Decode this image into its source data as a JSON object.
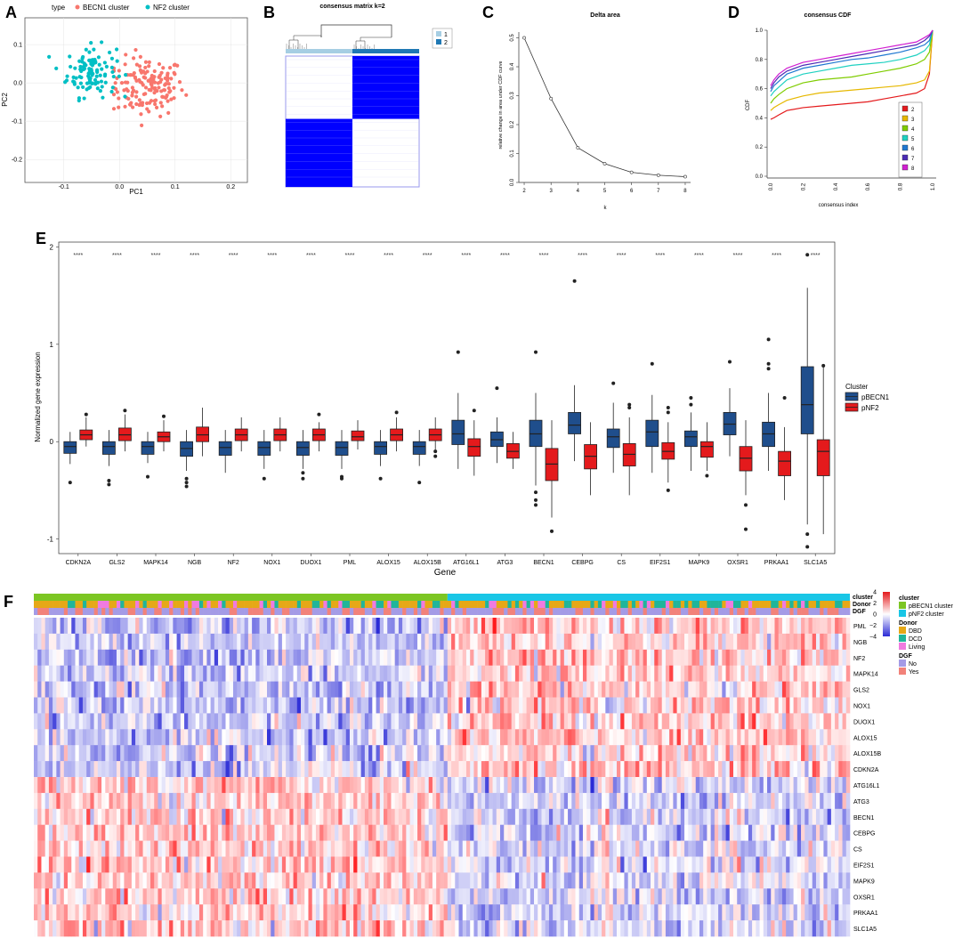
{
  "panels": {
    "A": {
      "letter": "A",
      "legend_title": "type",
      "legend": [
        {
          "label": "BECN1 cluster",
          "color": "#F8766D"
        },
        {
          "label": "NF2 cluster",
          "color": "#00BFC4"
        }
      ],
      "xlabel": "PC1",
      "ylabel": "PC2",
      "xticks": [
        "-0.1",
        "0.0",
        "0.1",
        "0.2"
      ],
      "yticks": [
        "0.1",
        "0.0",
        "-0.1",
        "-0.2"
      ]
    },
    "B": {
      "letter": "B",
      "title": "consensus matrix k=2",
      "legend": [
        {
          "label": "1",
          "color": "#A6CEE3"
        },
        {
          "label": "2",
          "color": "#1F78B4"
        }
      ],
      "block_color": "#0000FF"
    },
    "C": {
      "letter": "C",
      "title": "Delta area",
      "xlabel": "k",
      "ylabel": "relative change in area under CDF curve",
      "yticks": [
        "0.0",
        "0.1",
        "0.2",
        "0.3",
        "0.4",
        "0.5"
      ]
    },
    "D": {
      "letter": "D",
      "title": "consensus CDF",
      "xlabel": "consensus index",
      "ylabel": "CDF",
      "ticks": [
        "0.0",
        "0.2",
        "0.4",
        "0.6",
        "0.8",
        "1.0"
      ]
    },
    "E": {
      "letter": "E",
      "xlabel": "Gene",
      "ylabel": "Normalized gene expression",
      "legend_title": "Cluster",
      "groups": [
        {
          "label": "pBECN1",
          "color": "#1F4E8C"
        },
        {
          "label": "pNF2",
          "color": "#E41A1C"
        }
      ],
      "yticks": [
        "2",
        "1",
        "0",
        "-1"
      ]
    },
    "F": {
      "letter": "F",
      "annotation_labels": [
        "cluster",
        "Donor",
        "DGF"
      ],
      "color_scale": {
        "ticks": [
          "4",
          "2",
          "0",
          "−2",
          "−4"
        ],
        "high": "#E41A1C",
        "mid": "#FFFFFF",
        "low": "#2B2BD6"
      },
      "legend_groups": [
        {
          "title": "cluster",
          "items": [
            {
              "label": "pBECN1 cluster",
              "color": "#7CC623"
            },
            {
              "label": "pNF2 cluster",
              "color": "#19C6E6"
            }
          ]
        },
        {
          "title": "Donor",
          "items": [
            {
              "label": "DBD",
              "color": "#E6A817"
            },
            {
              "label": "DCD",
              "color": "#20B59A"
            },
            {
              "label": "Living",
              "color": "#F07BE0"
            }
          ]
        },
        {
          "title": "DGF",
          "items": [
            {
              "label": "No",
              "color": "#A49BE6"
            },
            {
              "label": "Yes",
              "color": "#F2827A"
            }
          ]
        }
      ],
      "rows": [
        "PML",
        "NGB",
        "NF2",
        "MAPK14",
        "GLS2",
        "NOX1",
        "DUOX1",
        "ALOX15",
        "ALOX15B",
        "CDKN2A",
        "ATG16L1",
        "ATG3",
        "BECN1",
        "CEBPG",
        "CS",
        "EIF2S1",
        "MAPK9",
        "OXSR1",
        "PRKAA1",
        "SLC1A5"
      ]
    }
  },
  "chart_data": [
    {
      "type": "scatter",
      "panel": "A",
      "xlabel": "PC1",
      "ylabel": "PC2",
      "xlim": [
        -0.17,
        0.23
      ],
      "ylim": [
        -0.26,
        0.17
      ],
      "series": [
        {
          "name": "BECN1 cluster",
          "centroid": [
            0.05,
            -0.01
          ],
          "spread": [
            0.06,
            0.07
          ],
          "n": 150
        },
        {
          "name": "NF2 cluster",
          "centroid": [
            -0.05,
            0.03
          ],
          "spread": [
            0.04,
            0.06
          ],
          "n": 110
        }
      ]
    },
    {
      "type": "heatmap",
      "panel": "B",
      "title": "consensus matrix k=2",
      "cluster_fractions": [
        0.5,
        0.5
      ],
      "within_cluster_consensus": 1.0,
      "between_cluster_consensus": 0.0
    },
    {
      "type": "line",
      "panel": "C",
      "title": "Delta area",
      "x": [
        2,
        3,
        4,
        5,
        6,
        7,
        8
      ],
      "y": [
        0.5,
        0.29,
        0.12,
        0.065,
        0.035,
        0.025,
        0.02
      ],
      "xlabel": "k",
      "ylabel": "relative change in area under CDF curve",
      "xlim": [
        1.8,
        8.2
      ],
      "ylim": [
        0,
        0.52
      ]
    },
    {
      "type": "line",
      "panel": "D",
      "title": "consensus CDF",
      "xlabel": "consensus index",
      "ylabel": "CDF",
      "xlim": [
        0,
        1
      ],
      "ylim": [
        0,
        1
      ],
      "x": [
        0,
        0.02,
        0.05,
        0.1,
        0.2,
        0.3,
        0.4,
        0.5,
        0.6,
        0.7,
        0.8,
        0.9,
        0.95,
        0.98,
        1.0
      ],
      "series": [
        {
          "name": "2",
          "color": "#E41A1C",
          "values": [
            0.39,
            0.4,
            0.42,
            0.45,
            0.47,
            0.48,
            0.49,
            0.5,
            0.51,
            0.53,
            0.55,
            0.57,
            0.6,
            0.7,
            1.0
          ]
        },
        {
          "name": "3",
          "color": "#E6B800",
          "values": [
            0.45,
            0.47,
            0.49,
            0.52,
            0.55,
            0.57,
            0.58,
            0.59,
            0.6,
            0.61,
            0.62,
            0.64,
            0.66,
            0.72,
            1.0
          ]
        },
        {
          "name": "4",
          "color": "#7FCC00",
          "values": [
            0.5,
            0.53,
            0.56,
            0.6,
            0.64,
            0.66,
            0.67,
            0.68,
            0.7,
            0.72,
            0.74,
            0.77,
            0.8,
            0.85,
            1.0
          ]
        },
        {
          "name": "5",
          "color": "#1FD1C1",
          "values": [
            0.55,
            0.58,
            0.61,
            0.66,
            0.7,
            0.72,
            0.74,
            0.76,
            0.77,
            0.78,
            0.8,
            0.83,
            0.86,
            0.9,
            1.0
          ]
        },
        {
          "name": "6",
          "color": "#1F78D1",
          "values": [
            0.58,
            0.62,
            0.65,
            0.7,
            0.74,
            0.76,
            0.78,
            0.8,
            0.81,
            0.83,
            0.85,
            0.88,
            0.9,
            0.93,
            1.0
          ]
        },
        {
          "name": "7",
          "color": "#4B2AB5",
          "values": [
            0.6,
            0.64,
            0.68,
            0.72,
            0.76,
            0.78,
            0.8,
            0.82,
            0.84,
            0.86,
            0.88,
            0.9,
            0.93,
            0.96,
            1.0
          ]
        },
        {
          "name": "8",
          "color": "#D11FD1",
          "values": [
            0.62,
            0.66,
            0.7,
            0.74,
            0.78,
            0.8,
            0.82,
            0.84,
            0.86,
            0.88,
            0.9,
            0.92,
            0.95,
            0.97,
            1.0
          ]
        }
      ]
    },
    {
      "type": "bar",
      "subtype": "boxplot",
      "panel": "E",
      "xlabel": "Gene",
      "ylabel": "Normalized gene expression",
      "ylim": [
        -1.15,
        2.05
      ],
      "significance": "****",
      "categories": [
        "CDKN2A",
        "GLS2",
        "MAPK14",
        "NGB",
        "NF2",
        "NOX1",
        "DUOX1",
        "PML",
        "ALOX15",
        "ALOX15B",
        "ATG16L1",
        "ATG3",
        "BECN1",
        "CEBPG",
        "CS",
        "EIF2S1",
        "MAPK9",
        "OXSR1",
        "PRKAA1",
        "SLC1A5"
      ],
      "series": [
        {
          "name": "pBECN1",
          "stats": [
            [
              -0.23,
              -0.12,
              -0.05,
              0.0,
              0.1,
              [
                -0.42
              ]
            ],
            [
              -0.25,
              -0.13,
              -0.05,
              0.0,
              0.12,
              [
                -0.4,
                -0.44
              ]
            ],
            [
              -0.22,
              -0.13,
              -0.05,
              0.0,
              0.1,
              [
                -0.36
              ]
            ],
            [
              -0.3,
              -0.15,
              -0.07,
              0.0,
              0.12,
              [
                -0.38,
                -0.42,
                -0.46
              ]
            ],
            [
              -0.32,
              -0.14,
              -0.06,
              0.0,
              0.12,
              []
            ],
            [
              -0.28,
              -0.14,
              -0.06,
              0.0,
              0.12,
              [
                -0.38
              ]
            ],
            [
              -0.28,
              -0.14,
              -0.06,
              0.0,
              0.12,
              [
                -0.32,
                -0.38
              ]
            ],
            [
              -0.28,
              -0.14,
              -0.06,
              0.0,
              0.12,
              [
                -0.36,
                -0.38
              ]
            ],
            [
              -0.25,
              -0.13,
              -0.05,
              0.0,
              0.12,
              [
                -0.38
              ]
            ],
            [
              -0.25,
              -0.13,
              -0.05,
              0.0,
              0.12,
              [
                -0.42
              ]
            ],
            [
              -0.28,
              -0.03,
              0.08,
              0.22,
              0.5,
              [
                0.92
              ]
            ],
            [
              -0.22,
              -0.05,
              0.02,
              0.1,
              0.25,
              [
                0.55
              ]
            ],
            [
              -0.45,
              -0.05,
              0.08,
              0.22,
              0.5,
              [
                -0.6,
                -0.65,
                -0.52,
                0.92
              ]
            ],
            [
              -0.2,
              0.08,
              0.17,
              0.3,
              0.58,
              [
                1.65
              ]
            ],
            [
              -0.32,
              -0.06,
              0.05,
              0.13,
              0.4,
              [
                0.6
              ]
            ],
            [
              -0.32,
              -0.05,
              0.1,
              0.22,
              0.48,
              [
                0.8
              ]
            ],
            [
              -0.3,
              -0.05,
              0.05,
              0.11,
              0.3,
              [
                0.38,
                0.45
              ]
            ],
            [
              -0.15,
              0.07,
              0.18,
              0.3,
              0.55,
              [
                0.82
              ]
            ],
            [
              -0.3,
              -0.05,
              0.08,
              0.2,
              0.5,
              [
                0.75,
                0.8,
                1.05
              ]
            ],
            [
              -0.85,
              0.08,
              0.38,
              0.77,
              1.58,
              [
                -0.95,
                -1.08,
                1.92
              ]
            ]
          ]
        },
        {
          "name": "pNF2",
          "stats": [
            [
              -0.05,
              0.02,
              0.07,
              0.12,
              0.25,
              [
                0.28
              ]
            ],
            [
              -0.1,
              0.01,
              0.07,
              0.14,
              0.28,
              [
                0.32
              ]
            ],
            [
              -0.1,
              0.0,
              0.05,
              0.1,
              0.22,
              [
                0.26
              ]
            ],
            [
              -0.15,
              0.0,
              0.07,
              0.15,
              0.35,
              []
            ],
            [
              -0.1,
              0.01,
              0.07,
              0.13,
              0.25,
              []
            ],
            [
              -0.1,
              0.01,
              0.07,
              0.13,
              0.25,
              []
            ],
            [
              -0.1,
              0.01,
              0.07,
              0.13,
              0.2,
              [
                0.28
              ]
            ],
            [
              -0.08,
              0.01,
              0.05,
              0.11,
              0.22,
              []
            ],
            [
              -0.1,
              0.01,
              0.07,
              0.13,
              0.25,
              [
                0.3
              ]
            ],
            [
              -0.1,
              0.01,
              0.07,
              0.13,
              0.25,
              [
                -0.1,
                -0.15
              ]
            ],
            [
              -0.35,
              -0.15,
              -0.05,
              0.03,
              0.22,
              [
                0.32
              ]
            ],
            [
              -0.28,
              -0.17,
              -0.1,
              -0.02,
              0.1,
              []
            ],
            [
              -0.78,
              -0.4,
              -0.23,
              -0.07,
              0.22,
              [
                -0.92
              ]
            ],
            [
              -0.55,
              -0.28,
              -0.15,
              -0.03,
              0.2,
              []
            ],
            [
              -0.55,
              -0.25,
              -0.13,
              -0.02,
              0.25,
              [
                0.35,
                0.38
              ]
            ],
            [
              -0.42,
              -0.18,
              -0.1,
              -0.01,
              0.2,
              [
                0.3,
                0.35,
                -0.5
              ]
            ],
            [
              -0.3,
              -0.16,
              -0.05,
              0.0,
              0.2,
              [
                -0.35
              ]
            ],
            [
              -0.55,
              -0.3,
              -0.17,
              -0.05,
              0.22,
              [
                -0.65,
                -0.9
              ]
            ],
            [
              -0.6,
              -0.35,
              -0.2,
              -0.1,
              0.15,
              [
                0.45
              ]
            ],
            [
              -0.95,
              -0.35,
              -0.1,
              0.02,
              0.78,
              [
                0.78
              ]
            ]
          ]
        }
      ]
    },
    {
      "type": "heatmap",
      "panel": "F",
      "rows": [
        "PML",
        "NGB",
        "NF2",
        "MAPK14",
        "GLS2",
        "NOX1",
        "DUOX1",
        "ALOX15",
        "ALOX15B",
        "CDKN2A",
        "ATG16L1",
        "ATG3",
        "BECN1",
        "CEBPG",
        "CS",
        "EIF2S1",
        "MAPK9",
        "OXSR1",
        "PRKAA1",
        "SLC1A5"
      ],
      "columns": {
        "pBECN1 cluster": 110,
        "pNF2 cluster": 107
      },
      "pattern": "first 10 genes low in pBECN1 / high in pNF2; last 10 genes high in pBECN1 / low in pNF2",
      "color_range": [
        -4,
        4
      ]
    }
  ]
}
